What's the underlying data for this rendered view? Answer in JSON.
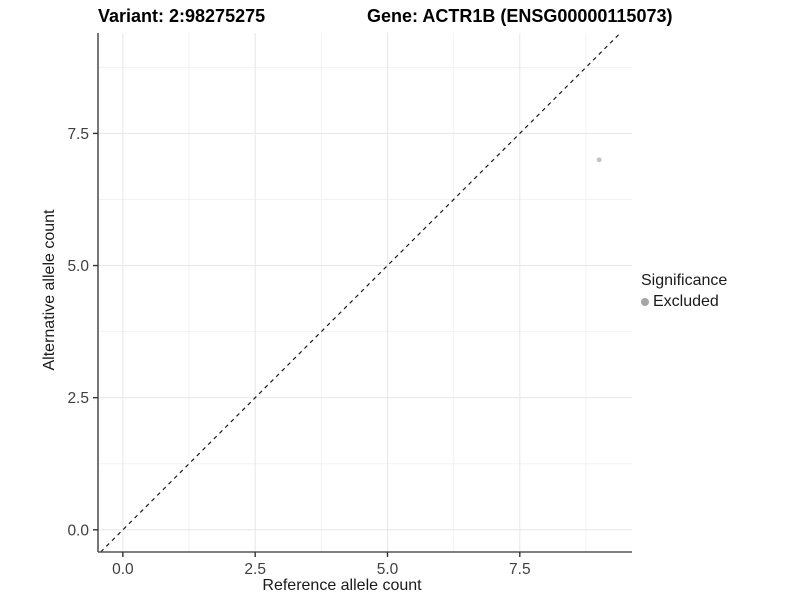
{
  "titles": {
    "left": "Variant: 2:98275275",
    "right": "Gene: ACTR1B (ENSG00000115073)"
  },
  "chart_data": {
    "type": "scatter",
    "xlabel": "Reference allele count",
    "ylabel": "Alternative allele count",
    "x_ticks": [
      0.0,
      2.5,
      5.0,
      7.5
    ],
    "y_ticks": [
      0.0,
      2.5,
      5.0,
      7.5
    ],
    "x_minor_ticks": [
      1.25,
      3.75,
      6.25,
      8.75
    ],
    "y_minor_ticks": [
      1.25,
      3.75,
      6.25,
      8.75
    ],
    "xlim": [
      -0.47,
      9.62
    ],
    "ylim": [
      -0.42,
      9.4
    ],
    "tick_decimals": 1,
    "grid": "major+minor",
    "identity_line": {
      "equation": "y = x",
      "style": "dashed",
      "color": "#1a1a1a"
    },
    "series": [
      {
        "name": "Excluded",
        "color": "#c3c3c3",
        "points": [
          {
            "x": 9,
            "y": 7
          }
        ]
      }
    ],
    "legend": {
      "title": "Significance",
      "position": "right",
      "items": [
        {
          "label": "Excluded",
          "color": "#a6a6a6"
        }
      ]
    },
    "colors": {
      "background": "#ffffff",
      "grid_major": "#e8e8e8",
      "grid_minor": "#f2f2f2",
      "axis_line": "#555555",
      "tick_mark": "#333333",
      "tick_label": "#404040"
    }
  }
}
